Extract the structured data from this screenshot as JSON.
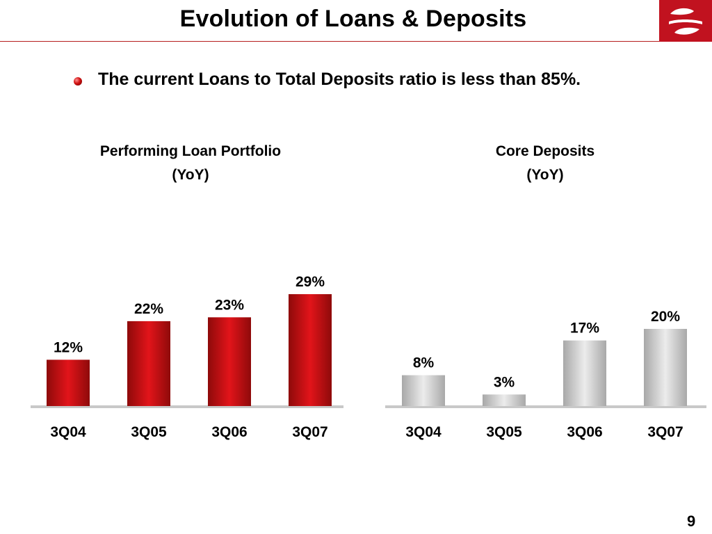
{
  "slide": {
    "title": "Evolution of Loans & Deposits",
    "bullet": "The current Loans to Total Deposits ratio is less than 85%.",
    "page_number": "9"
  },
  "colors": {
    "accent": "#c1121f",
    "loan_bar": "#c40d12",
    "deposit_bar": "#c8c8c8",
    "baseline": "#c8c8c8"
  },
  "chart_data": [
    {
      "type": "bar",
      "title": "Performing Loan Portfolio",
      "subtitle": "(YoY)",
      "categories": [
        "3Q04",
        "3Q05",
        "3Q06",
        "3Q07"
      ],
      "values": [
        12,
        22,
        23,
        29
      ],
      "value_labels": [
        "12%",
        "22%",
        "23%",
        "29%"
      ],
      "unit": "%",
      "ylim": [
        0,
        30
      ],
      "grid": false,
      "bar_color": "red"
    },
    {
      "type": "bar",
      "title": "Core Deposits",
      "subtitle": "(YoY)",
      "categories": [
        "3Q04",
        "3Q05",
        "3Q06",
        "3Q07"
      ],
      "values": [
        8,
        3,
        17,
        20
      ],
      "value_labels": [
        "8%",
        "3%",
        "17%",
        "20%"
      ],
      "unit": "%",
      "ylim": [
        0,
        30
      ],
      "grid": false,
      "bar_color": "gray"
    }
  ]
}
